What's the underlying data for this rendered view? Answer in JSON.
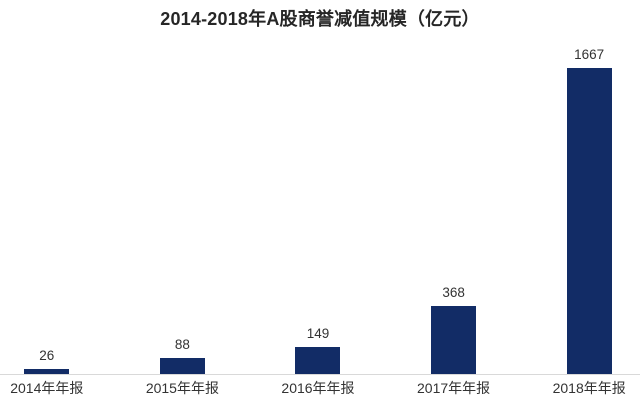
{
  "chart_data": {
    "type": "bar",
    "title": "2014-2018年A股商誉减值规模（亿元）",
    "categories": [
      "2014年年报",
      "2015年年报",
      "2016年年报",
      "2017年年报",
      "2018年年报"
    ],
    "values": [
      26,
      88,
      149,
      368,
      1667
    ],
    "xlabel": "",
    "ylabel": "",
    "ylim": [
      0,
      1800
    ],
    "grid": false,
    "legend": "none",
    "value_labels_shown": true,
    "colors": {
      "bar": "#122c66",
      "title": "#262626",
      "value_label": "#333333",
      "tick_label": "#333333",
      "axis_line": "#d9d9d9",
      "background": "#ffffff"
    }
  }
}
